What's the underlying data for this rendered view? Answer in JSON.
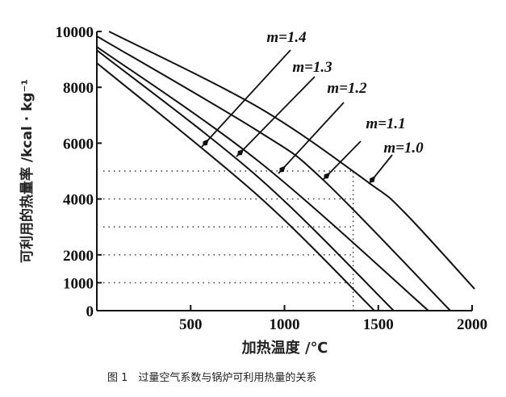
{
  "chart_data": {
    "type": "line",
    "title": "",
    "caption": "图 1　过量空气系数与锅炉可利用热量的关系",
    "xlabel": "加热温度 /℃",
    "ylabel": "可利用的热量率 /kcal · kg⁻¹",
    "xlim": [
      0,
      2000
    ],
    "ylim": [
      0,
      10000
    ],
    "xticks": [
      500,
      1000,
      1500,
      2000
    ],
    "yticks": [
      0,
      1000,
      2000,
      4000,
      6000,
      8000,
      10000
    ],
    "grid": false,
    "reference_lines": {
      "horizontal_dotted": [
        1000,
        2000,
        3000,
        4000,
        5000
      ],
      "vertical_dotted": {
        "x": 1366,
        "y_range": [
          0,
          5000
        ]
      }
    },
    "series": [
      {
        "name": "m=1.0",
        "x": [
          65,
          862,
          1452,
          1638,
          2013
        ],
        "y": [
          10000,
          7280,
          4570,
          3530,
          780
        ]
      },
      {
        "name": "m=1.1",
        "x": [
          0,
          862,
          1207,
          1884
        ],
        "y": [
          9830,
          6420,
          4680,
          0
        ]
      },
      {
        "name": "m=1.2",
        "x": [
          0,
          862,
          1767
        ],
        "y": [
          9450,
          5350,
          0
        ]
      },
      {
        "name": "m=1.3",
        "x": [
          0,
          862,
          1582
        ],
        "y": [
          9330,
          4770,
          0
        ]
      },
      {
        "name": "m=1.4",
        "x": [
          0,
          862,
          1479
        ],
        "y": [
          8870,
          4100,
          0
        ]
      }
    ],
    "annotations": [
      "m=1.4",
      "m=1.3",
      "m=1.2",
      "m=1.1",
      "m=1.0"
    ]
  },
  "colors": {
    "line": "#111111",
    "background": "#ffffff"
  }
}
